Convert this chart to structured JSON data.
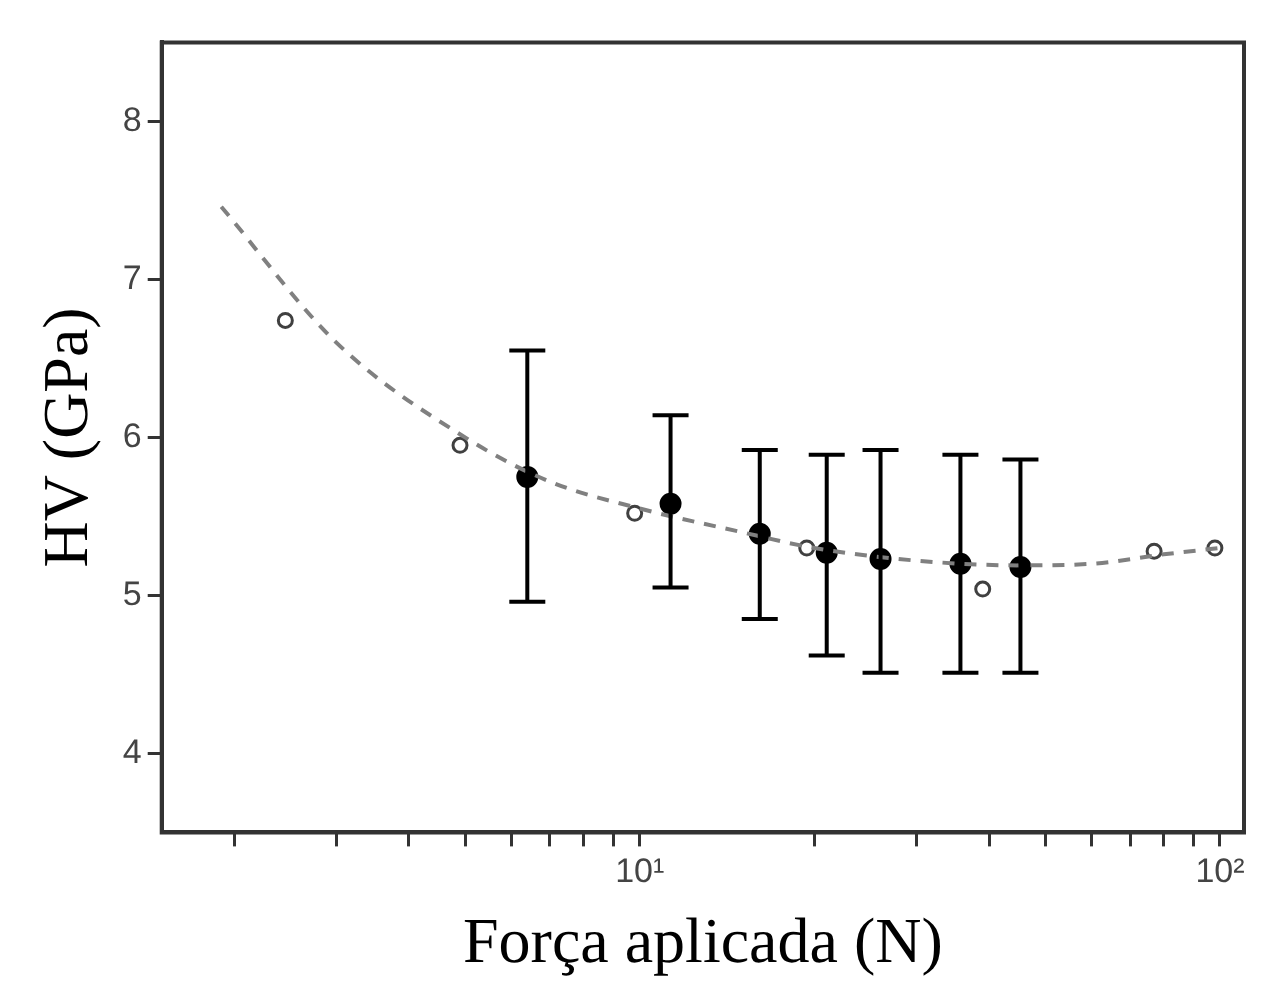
{
  "chart_data": {
    "type": "scatter",
    "xlabel": "Força aplicada (N)",
    "ylabel": "HV (GPa)",
    "log": "x",
    "grid": false,
    "legend": false,
    "xlim": [
      1.5,
      110
    ],
    "ylim": [
      3.5,
      8.5
    ],
    "xticks": [
      {
        "value": 2,
        "label": null
      },
      {
        "value": 3,
        "label": null
      },
      {
        "value": 4,
        "label": null
      },
      {
        "value": 5,
        "label": null
      },
      {
        "value": 6,
        "label": null
      },
      {
        "value": 7,
        "label": null
      },
      {
        "value": 8,
        "label": null
      },
      {
        "value": 9,
        "label": null
      },
      {
        "value": 10,
        "label": "10¹"
      },
      {
        "value": 20,
        "label": null
      },
      {
        "value": 30,
        "label": null
      },
      {
        "value": 40,
        "label": null
      },
      {
        "value": 50,
        "label": null
      },
      {
        "value": 60,
        "label": null
      },
      {
        "value": 70,
        "label": null
      },
      {
        "value": 80,
        "label": null
      },
      {
        "value": 90,
        "label": null
      },
      {
        "value": 100,
        "label": "10²"
      }
    ],
    "yticks": [
      4,
      5,
      6,
      7,
      8
    ],
    "series": [
      {
        "type": "line",
        "color": "#808080",
        "line_style": "dashed",
        "marker": "none",
        "x": [
          1.9,
          3,
          5,
          7,
          10,
          15,
          20,
          30,
          45,
          60,
          80,
          100
        ],
        "values": [
          7.46,
          6.6,
          6.0,
          5.72,
          5.55,
          5.4,
          5.3,
          5.22,
          5.19,
          5.2,
          5.26,
          5.3
        ]
      },
      {
        "type": "scatter",
        "color": "#404040",
        "marker": "circle",
        "x": [
          2.45,
          4.9,
          9.8,
          19.4,
          39,
          77,
          98
        ],
        "values": [
          6.74,
          5.95,
          5.52,
          5.3,
          5.04,
          5.28,
          5.3
        ]
      },
      {
        "type": "scatter",
        "color": "#000000",
        "marker": "circle",
        "x": [
          6.4,
          11.3,
          16.1,
          21,
          26,
          35.7,
          45.3
        ],
        "values": [
          5.75,
          5.58,
          5.39,
          5.27,
          5.23,
          5.2,
          5.18
        ],
        "errors": [
          [
            4.96,
            6.55
          ],
          [
            5.05,
            6.14
          ],
          [
            4.85,
            5.92
          ],
          [
            4.62,
            5.89
          ],
          [
            4.51,
            5.92
          ],
          [
            4.51,
            5.89
          ],
          [
            4.51,
            5.86
          ]
        ]
      }
    ]
  }
}
